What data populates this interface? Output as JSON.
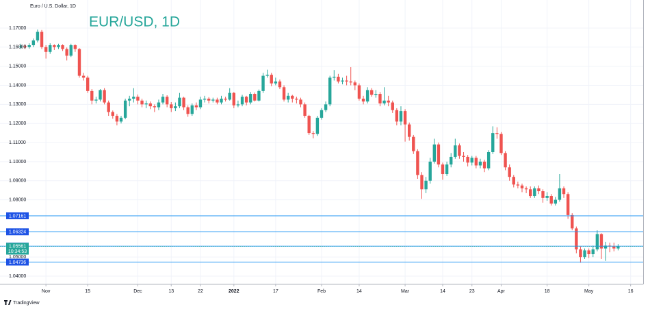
{
  "chart_data": {
    "type": "candlestick",
    "symbol_label": "Euro / U.S. Dollar, 1D",
    "title": "EUR/USD, 1D",
    "brand": "TradingView",
    "up_color": "#26a69a",
    "down_color": "#ef5350",
    "grid": true,
    "xlim": [
      -5,
      149
    ],
    "xticks": [
      {
        "value": 6,
        "label": "Nov"
      },
      {
        "value": 16,
        "label": "15"
      },
      {
        "value": 28,
        "label": "Dec"
      },
      {
        "value": 36,
        "label": "13"
      },
      {
        "value": 43,
        "label": "22"
      },
      {
        "value": 51,
        "label": "2022"
      },
      {
        "value": 61,
        "label": "17"
      },
      {
        "value": 72,
        "label": "Feb"
      },
      {
        "value": 81,
        "label": "14"
      },
      {
        "value": 92,
        "label": "Mar"
      },
      {
        "value": 101,
        "label": "14"
      },
      {
        "value": 108,
        "label": "23"
      },
      {
        "value": 115,
        "label": "Apr"
      },
      {
        "value": 126,
        "label": "18"
      },
      {
        "value": 136,
        "label": "May"
      },
      {
        "value": 146,
        "label": "16"
      }
    ],
    "ylim": [
      1.0357,
      1.1847
    ],
    "yticks": [
      {
        "value": 1.17,
        "label": "1.17000"
      },
      {
        "value": 1.16,
        "label": "1.16000"
      },
      {
        "value": 1.15,
        "label": "1.15000"
      },
      {
        "value": 1.14,
        "label": "1.14000"
      },
      {
        "value": 1.13,
        "label": "1.13000"
      },
      {
        "value": 1.12,
        "label": "1.12000"
      },
      {
        "value": 1.11,
        "label": "1.11000"
      },
      {
        "value": 1.1,
        "label": "1.10000"
      },
      {
        "value": 1.09,
        "label": "1.09000"
      },
      {
        "value": 1.08,
        "label": "1.08000"
      },
      {
        "value": 1.05,
        "label": "1.05000"
      },
      {
        "value": 1.04,
        "label": "1.04000"
      }
    ],
    "price_lines": [
      {
        "value": 1.07161,
        "label": "1.07161"
      },
      {
        "value": 1.06324,
        "label": "1.06324"
      },
      {
        "value": 1.05572,
        "label": "1.05572"
      },
      {
        "value": 1.04736,
        "label": "1.04736"
      }
    ],
    "current_price": {
      "value": 1.05561,
      "label": "1.05561",
      "countdown": "10:34:53"
    },
    "open": [
      1.16,
      1.1605,
      1.16,
      1.161,
      1.1635,
      1.168,
      1.16,
      1.1575,
      1.161,
      1.16,
      1.161,
      1.159,
      1.1555,
      1.161,
      1.159,
      1.145,
      1.144,
      1.137,
      1.132,
      1.1325,
      1.1375,
      1.131,
      1.126,
      1.124,
      1.121,
      1.123,
      1.132,
      1.133,
      1.134,
      1.132,
      1.13,
      1.1305,
      1.129,
      1.1285,
      1.131,
      1.134,
      1.13,
      1.128,
      1.129,
      1.1335,
      1.1285,
      1.125,
      1.1295,
      1.1285,
      1.1325,
      1.133,
      1.132,
      1.1325,
      1.131,
      1.133,
      1.1325,
      1.136,
      1.1295,
      1.13,
      1.134,
      1.131,
      1.1355,
      1.132,
      1.137,
      1.145,
      1.1455,
      1.141,
      1.142,
      1.139,
      1.1325,
      1.1345,
      1.133,
      1.1325,
      1.13,
      1.124,
      1.115,
      1.1145,
      1.123,
      1.127,
      1.13,
      1.144,
      1.1445,
      1.142,
      1.1425,
      1.142,
      1.1415,
      1.14,
      1.133,
      1.1315,
      1.1375,
      1.135,
      1.1355,
      1.1305,
      1.132,
      1.131,
      1.127,
      1.121,
      1.1265,
      1.1195,
      1.113,
      1.1055,
      1.093,
      1.0855,
      1.09,
      1.1,
      1.109,
      1.0985,
      1.0935,
      1.0985,
      1.1025,
      1.1085,
      1.103,
      1.1025,
      1.0995,
      1.102,
      1.098,
      1.1,
      1.0965,
      1.105,
      1.115,
      1.1145,
      1.1045,
      1.097,
      1.092,
      1.088,
      1.0875,
      1.086,
      1.0855,
      1.082,
      1.086,
      1.0845,
      1.081,
      1.082,
      1.078,
      1.08,
      1.086,
      1.083,
      1.072,
      1.065,
      1.054,
      1.05,
      1.0535,
      1.0515,
      1.054,
      1.062,
      1.0545,
      1.056,
      1.0555,
      1.0545
    ],
    "high": [
      1.1618,
      1.1615,
      1.162,
      1.1645,
      1.1692,
      1.169,
      1.161,
      1.162,
      1.1615,
      1.1618,
      1.1615,
      1.1598,
      1.1618,
      1.1615,
      1.1595,
      1.1465,
      1.145,
      1.138,
      1.134,
      1.138,
      1.1385,
      1.132,
      1.1268,
      1.125,
      1.124,
      1.133,
      1.1345,
      1.1385,
      1.1352,
      1.133,
      1.132,
      1.1315,
      1.13,
      1.1325,
      1.1355,
      1.1348,
      1.1312,
      1.131,
      1.136,
      1.134,
      1.1295,
      1.1305,
      1.131,
      1.134,
      1.1345,
      1.1338,
      1.1335,
      1.1335,
      1.1345,
      1.134,
      1.1385,
      1.1365,
      1.132,
      1.135,
      1.1345,
      1.1365,
      1.1362,
      1.1378,
      1.1465,
      1.1482,
      1.1465,
      1.144,
      1.143,
      1.14,
      1.136,
      1.135,
      1.134,
      1.1335,
      1.131,
      1.1245,
      1.116,
      1.124,
      1.128,
      1.1315,
      1.145,
      1.148,
      1.146,
      1.144,
      1.145,
      1.1495,
      1.1425,
      1.141,
      1.1345,
      1.139,
      1.1385,
      1.1375,
      1.1365,
      1.139,
      1.1345,
      1.132,
      1.128,
      1.129,
      1.1275,
      1.1205,
      1.114,
      1.1065,
      1.0945,
      1.092,
      1.102,
      1.112,
      1.11,
      1.0995,
      1.1,
      1.1045,
      1.112,
      1.1095,
      1.105,
      1.1035,
      1.103,
      1.103,
      1.1015,
      1.101,
      1.106,
      1.1185,
      1.118,
      1.1155,
      1.1055,
      1.0985,
      1.093,
      1.0895,
      1.0885,
      1.087,
      1.087,
      1.087,
      1.0875,
      1.0855,
      1.084,
      1.083,
      1.0815,
      1.0935,
      1.087,
      1.084,
      1.073,
      1.066,
      1.0555,
      1.0545,
      1.0545,
      1.056,
      1.064,
      1.0625,
      1.058,
      1.0575,
      1.0575,
      1.0568
    ],
    "low": [
      1.159,
      1.159,
      1.1592,
      1.16,
      1.1625,
      1.159,
      1.154,
      1.1565,
      1.1585,
      1.159,
      1.158,
      1.153,
      1.1548,
      1.1575,
      1.144,
      1.1425,
      1.136,
      1.13,
      1.1305,
      1.1315,
      1.13,
      1.124,
      1.1225,
      1.119,
      1.12,
      1.1222,
      1.129,
      1.131,
      1.13,
      1.1285,
      1.128,
      1.1275,
      1.126,
      1.127,
      1.13,
      1.1285,
      1.126,
      1.1265,
      1.128,
      1.127,
      1.1235,
      1.124,
      1.127,
      1.1275,
      1.131,
      1.1305,
      1.131,
      1.13,
      1.13,
      1.1315,
      1.132,
      1.128,
      1.1285,
      1.129,
      1.1295,
      1.13,
      1.1315,
      1.1315,
      1.136,
      1.144,
      1.1395,
      1.14,
      1.138,
      1.1315,
      1.131,
      1.131,
      1.1305,
      1.1285,
      1.123,
      1.114,
      1.1122,
      1.1135,
      1.122,
      1.126,
      1.129,
      1.1425,
      1.141,
      1.1405,
      1.14,
      1.14,
      1.1375,
      1.132,
      1.13,
      1.1305,
      1.134,
      1.1335,
      1.129,
      1.1295,
      1.129,
      1.1255,
      1.119,
      1.119,
      1.1105,
      1.111,
      1.104,
      1.091,
      1.0805,
      1.0835,
      1.0885,
      1.099,
      1.097,
      1.0905,
      1.0925,
      1.097,
      1.1015,
      1.1015,
      1.1,
      1.0975,
      1.098,
      1.0965,
      1.0965,
      1.0945,
      1.0955,
      1.104,
      1.112,
      1.1035,
      1.0955,
      1.09,
      1.0865,
      1.086,
      1.084,
      1.0835,
      1.081,
      1.081,
      1.083,
      1.0785,
      1.0795,
      1.077,
      1.077,
      1.079,
      1.081,
      1.07,
      1.064,
      1.052,
      1.047,
      1.049,
      1.0495,
      1.05,
      1.053,
      1.049,
      1.048,
      1.0525,
      1.053,
      1.0535
    ],
    "close": [
      1.1605,
      1.16,
      1.161,
      1.1635,
      1.168,
      1.16,
      1.1575,
      1.161,
      1.16,
      1.161,
      1.159,
      1.1555,
      1.161,
      1.159,
      1.145,
      1.144,
      1.137,
      1.132,
      1.1325,
      1.1375,
      1.131,
      1.126,
      1.124,
      1.121,
      1.123,
      1.132,
      1.133,
      1.134,
      1.132,
      1.13,
      1.1305,
      1.129,
      1.1285,
      1.131,
      1.134,
      1.13,
      1.128,
      1.129,
      1.1335,
      1.1285,
      1.125,
      1.1295,
      1.1285,
      1.1325,
      1.133,
      1.132,
      1.1325,
      1.131,
      1.133,
      1.1325,
      1.136,
      1.1295,
      1.13,
      1.134,
      1.131,
      1.1355,
      1.132,
      1.137,
      1.145,
      1.1455,
      1.141,
      1.142,
      1.139,
      1.1325,
      1.1345,
      1.133,
      1.1325,
      1.13,
      1.124,
      1.115,
      1.1145,
      1.123,
      1.127,
      1.13,
      1.144,
      1.1445,
      1.142,
      1.1425,
      1.142,
      1.1415,
      1.14,
      1.133,
      1.1315,
      1.1375,
      1.135,
      1.1355,
      1.1305,
      1.132,
      1.131,
      1.127,
      1.121,
      1.1265,
      1.1195,
      1.113,
      1.1055,
      1.093,
      1.0855,
      1.09,
      1.1,
      1.109,
      1.0985,
      1.0935,
      1.0985,
      1.1025,
      1.1085,
      1.103,
      1.1025,
      1.0995,
      1.102,
      1.098,
      1.1,
      1.0965,
      1.105,
      1.115,
      1.1145,
      1.1045,
      1.097,
      1.092,
      1.088,
      1.0875,
      1.086,
      1.0855,
      1.082,
      1.086,
      1.0845,
      1.081,
      1.082,
      1.078,
      1.08,
      1.086,
      1.083,
      1.072,
      1.065,
      1.054,
      1.05,
      1.0535,
      1.0515,
      1.054,
      1.062,
      1.0545,
      1.056,
      1.0555,
      1.0545,
      1.0556
    ]
  }
}
